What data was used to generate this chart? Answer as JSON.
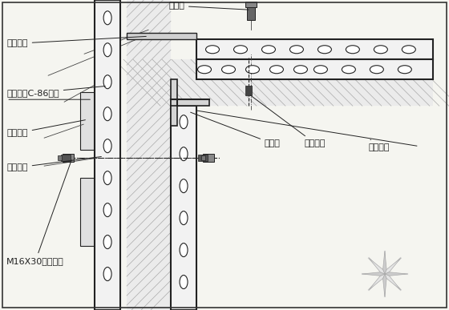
{
  "bg_color": "#f5f5f0",
  "line_color": "#333333",
  "hatch_color": "#555555",
  "labels": {
    "tiaojiefeng": "调节缝",
    "lianjiejiaogong": "连接角钢",
    "quangang": "全钢定型C-86模板",
    "caogangbeijia": "槽钢背楞",
    "mobanyingguan": "模板芯管",
    "m16bolt": "M16X30连接螺栓",
    "yinjiaomo": "阴角模",
    "chuanqiangluoshuan": "穿墙螺栓",
    "jiaomoxindai": "角模芯带"
  },
  "title_fontsize": 9,
  "label_fontsize": 8
}
